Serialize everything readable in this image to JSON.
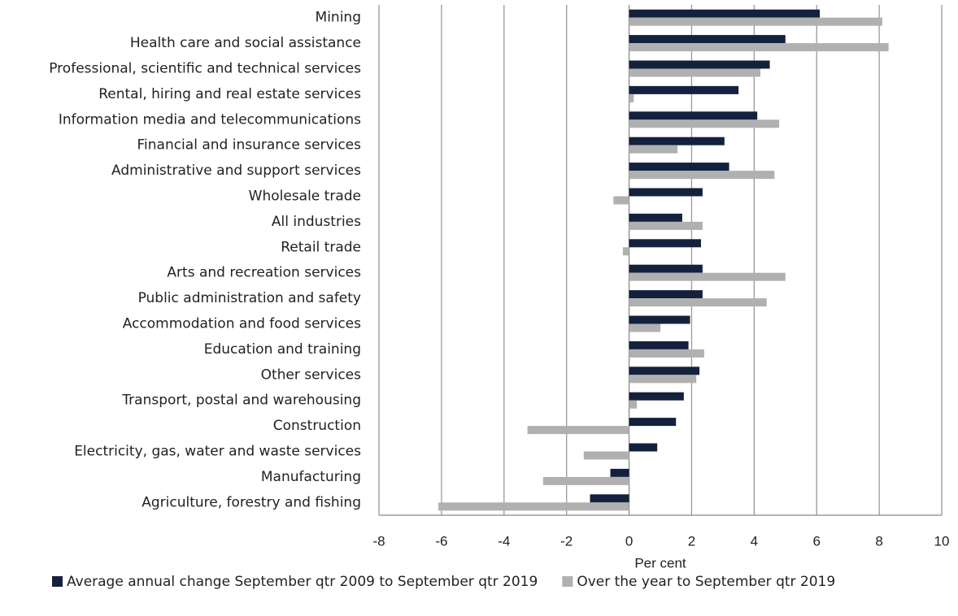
{
  "chart_data": {
    "type": "hbar",
    "categories": [
      "Mining",
      "Health care and social assistance",
      "Professional, scientific and technical services",
      "Rental, hiring and real estate services",
      "Information media and telecommunications",
      "Financial and insurance services",
      "Administrative and support services",
      "Wholesale trade",
      "All industries",
      "Retail trade",
      "Arts and recreation services",
      "Public administration and safety",
      "Accommodation and food services",
      "Education and training",
      "Other services",
      "Transport, postal and warehousing",
      "Construction",
      "Electricity, gas, water and waste services",
      "Manufacturing",
      "Agriculture, forestry and fishing"
    ],
    "series": [
      {
        "name": "Average annual change September qtr 2009 to September qtr 2019",
        "color": "#14213d",
        "values": [
          6.1,
          5.0,
          4.5,
          3.5,
          4.1,
          3.05,
          3.2,
          2.35,
          1.7,
          2.3,
          2.35,
          2.35,
          1.95,
          1.9,
          2.25,
          1.75,
          1.5,
          0.9,
          -0.6,
          -1.25
        ]
      },
      {
        "name": "Over the year to September qtr 2019",
        "color": "#b0b0b0",
        "values": [
          8.1,
          8.3,
          4.2,
          0.15,
          4.8,
          1.55,
          4.65,
          -0.5,
          2.35,
          -0.2,
          5.0,
          4.4,
          1.0,
          2.4,
          2.15,
          0.25,
          -3.25,
          -1.45,
          -2.75,
          -6.1
        ]
      }
    ],
    "x_label": "Per cent",
    "xlim": [
      -8,
      10
    ],
    "xticks": [
      -8,
      -6,
      -4,
      -2,
      0,
      2,
      4,
      6,
      8,
      10
    ],
    "grid": true
  }
}
